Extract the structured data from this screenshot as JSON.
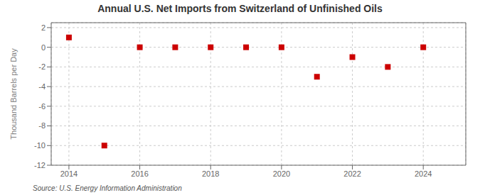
{
  "chart_data": {
    "type": "scatter",
    "title": "Annual U.S. Net Imports from Switzerland of Unfinished Oils",
    "ylabel": "Thousand Barrels per Day",
    "annotation": "Source: U.S. Energy Information Administration",
    "x": [
      2014,
      2015,
      2016,
      2017,
      2018,
      2019,
      2020,
      2021,
      2022,
      2023,
      2024
    ],
    "values": [
      1,
      -10,
      0,
      0,
      0,
      0,
      0,
      -3,
      -1,
      -2,
      0
    ],
    "xlim": [
      2013.5,
      2025.2
    ],
    "ylim": [
      -12,
      2.5
    ],
    "xticks": [
      2014,
      2016,
      2018,
      2020,
      2022,
      2024
    ],
    "yticks": [
      2,
      0,
      -2,
      -4,
      -6,
      -8,
      -10,
      -12
    ],
    "color": "#CC0000",
    "marker": "square",
    "grid": true
  }
}
